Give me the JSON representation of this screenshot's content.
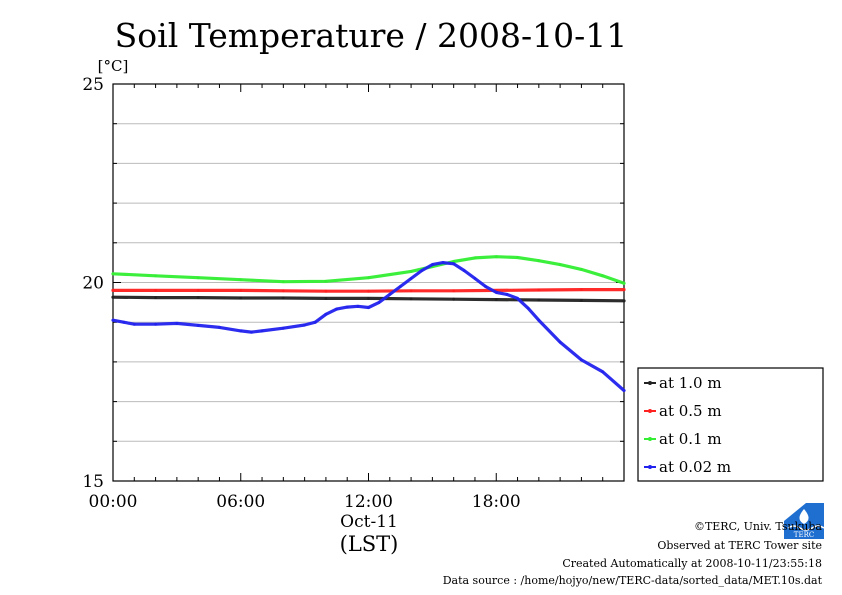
{
  "chart_data": {
    "type": "line",
    "title": "Soil Temperature / 2008-10-11",
    "ylabel": "[°C]",
    "xlabel": "(LST)",
    "date_label": "Oct-11",
    "ylim": [
      15,
      25
    ],
    "xlim": [
      0,
      24
    ],
    "y_ticks": [
      15,
      20,
      25
    ],
    "y_tick_labels": [
      "15",
      "20",
      "25"
    ],
    "x_ticks": [
      0,
      6,
      12,
      18
    ],
    "x_tick_labels": [
      "00:00",
      "06:00",
      "12:00",
      "18:00"
    ],
    "grid": true,
    "legend_position": "right",
    "series": [
      {
        "name": "at 1.0 m",
        "color": "#222222",
        "x": [
          0,
          2,
          4,
          6,
          8,
          10,
          12,
          14,
          16,
          18,
          20,
          22,
          24
        ],
        "y": [
          19.63,
          19.62,
          19.62,
          19.61,
          19.61,
          19.6,
          19.6,
          19.59,
          19.58,
          19.57,
          19.56,
          19.55,
          19.54
        ]
      },
      {
        "name": "at 0.5 m",
        "color": "#ff2020",
        "x": [
          0,
          2,
          4,
          6,
          8,
          10,
          12,
          14,
          16,
          18,
          20,
          22,
          24
        ],
        "y": [
          19.8,
          19.8,
          19.8,
          19.8,
          19.79,
          19.78,
          19.78,
          19.79,
          19.79,
          19.8,
          19.81,
          19.82,
          19.82
        ]
      },
      {
        "name": "at 0.1 m",
        "color": "#33ee33",
        "x": [
          0,
          2,
          4,
          6,
          8,
          10,
          12,
          14,
          15,
          16,
          17,
          18,
          19,
          20,
          21,
          22,
          23,
          24
        ],
        "y": [
          20.22,
          20.17,
          20.12,
          20.07,
          20.02,
          20.03,
          20.12,
          20.28,
          20.4,
          20.53,
          20.62,
          20.65,
          20.63,
          20.55,
          20.45,
          20.33,
          20.17,
          19.98
        ]
      },
      {
        "name": "at 0.02 m",
        "color": "#2222ee",
        "x": [
          0,
          0.5,
          1,
          2,
          3,
          4,
          5,
          6,
          6.5,
          7,
          8,
          9,
          9.5,
          10,
          10.5,
          11,
          11.5,
          12,
          12.5,
          13,
          13.5,
          14,
          14.5,
          15,
          15.5,
          16,
          16.5,
          17,
          17.5,
          18,
          18.5,
          19,
          19.5,
          20,
          21,
          22,
          23,
          24
        ],
        "y": [
          19.05,
          19.0,
          18.95,
          18.95,
          18.97,
          18.92,
          18.87,
          18.78,
          18.75,
          18.78,
          18.85,
          18.93,
          19.0,
          19.2,
          19.33,
          19.38,
          19.4,
          19.37,
          19.5,
          19.7,
          19.9,
          20.1,
          20.3,
          20.45,
          20.5,
          20.47,
          20.3,
          20.1,
          19.9,
          19.75,
          19.7,
          19.6,
          19.35,
          19.05,
          18.5,
          18.05,
          17.75,
          17.28
        ]
      }
    ]
  },
  "footer": {
    "copyright": "©TERC, Univ. Tsukuba",
    "site": "Observed at TERC Tower site",
    "created": "Created Automatically at 2008-10-11/23:55:18",
    "source": "Data source : /home/hojyo/new/TERC-data/sorted_data/MET.10s.dat"
  },
  "logo": {
    "text": "TERC"
  }
}
